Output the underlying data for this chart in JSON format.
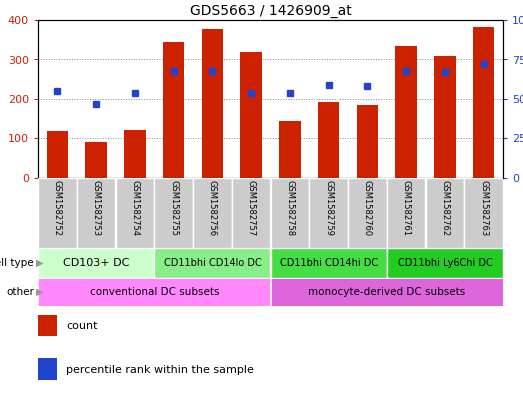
{
  "title": "GDS5663 / 1426909_at",
  "samples": [
    "GSM1582752",
    "GSM1582753",
    "GSM1582754",
    "GSM1582755",
    "GSM1582756",
    "GSM1582757",
    "GSM1582758",
    "GSM1582759",
    "GSM1582760",
    "GSM1582761",
    "GSM1582762",
    "GSM1582763"
  ],
  "counts": [
    120,
    90,
    122,
    345,
    378,
    320,
    145,
    193,
    185,
    335,
    310,
    383
  ],
  "percentiles": [
    55,
    47,
    54,
    68,
    68,
    54,
    54,
    59,
    58,
    68,
    67,
    72
  ],
  "ylim_left": [
    0,
    400
  ],
  "ylim_right": [
    0,
    100
  ],
  "yticks_left": [
    0,
    100,
    200,
    300,
    400
  ],
  "yticks_right": [
    0,
    25,
    50,
    75,
    100
  ],
  "yticklabels_right": [
    "0",
    "25",
    "50",
    "75",
    "100%"
  ],
  "bar_color": "#cc2200",
  "dot_color": "#2244cc",
  "cell_type_groups": [
    {
      "label": "CD103+ DC",
      "start": 0,
      "end": 3,
      "color": "#ccffcc"
    },
    {
      "label": "CD11bhi CD14lo DC",
      "start": 3,
      "end": 6,
      "color": "#88ee88"
    },
    {
      "label": "CD11bhi CD14hi DC",
      "start": 6,
      "end": 9,
      "color": "#44dd44"
    },
    {
      "label": "CD11bhi Ly6Chi DC",
      "start": 9,
      "end": 12,
      "color": "#22cc22"
    }
  ],
  "other_groups": [
    {
      "label": "conventional DC subsets",
      "start": 0,
      "end": 6,
      "color": "#ff88ff"
    },
    {
      "label": "monocyte-derived DC subsets",
      "start": 6,
      "end": 12,
      "color": "#dd66dd"
    }
  ],
  "bg_color": "#ffffff",
  "grid_color": "#888888",
  "sample_bg": "#cccccc",
  "bar_width": 0.55
}
